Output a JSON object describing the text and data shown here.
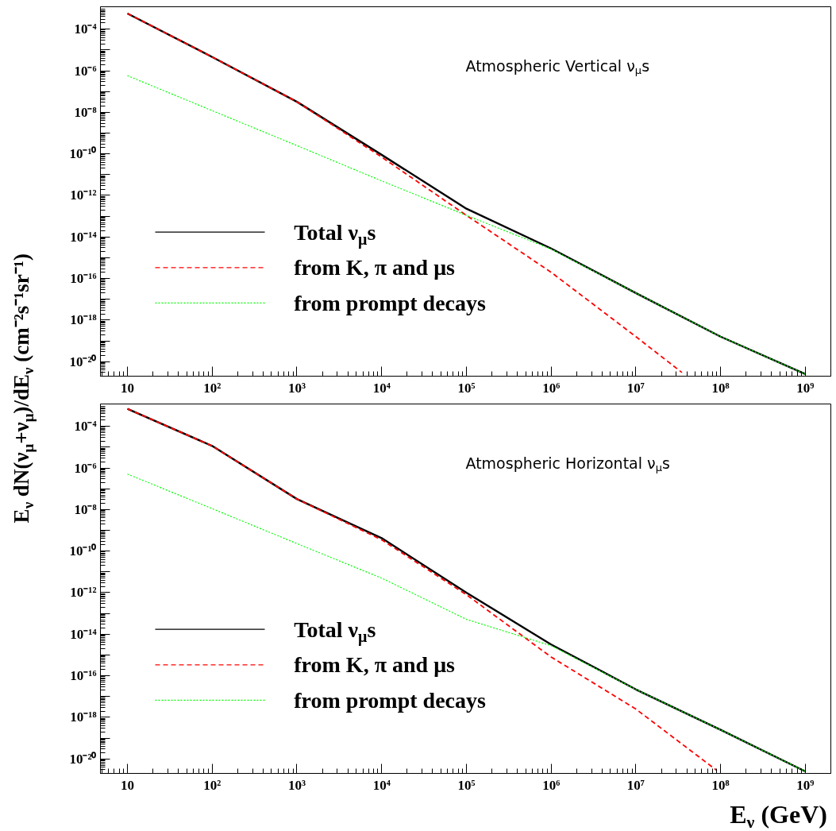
{
  "chart_data": [
    {
      "type": "line",
      "annotations": [
        "Atmospheric Vertical ν$_{μ}$s"
      ],
      "ylabel": "E$_{ν}$ dN(ν$_{μ}$+ν$_{μ}$)/dE$_{ν}$ (cm⁻²s⁻¹sr⁻¹)",
      "log": "xy",
      "grid": false,
      "legend": "bottom left",
      "xlim": [
        4.8,
        2000000000
      ],
      "ylim": [
        2e-21,
        0.0012
      ],
      "xticks": [
        {
          "value": 10,
          "label": "10"
        },
        {
          "value": 100,
          "label": "10²"
        },
        {
          "value": 1000,
          "label": "10³"
        },
        {
          "value": 10000,
          "label": "10⁴"
        },
        {
          "value": 100000,
          "label": "10⁵"
        },
        {
          "value": 1000000,
          "label": "10⁶"
        },
        {
          "value": 10000000,
          "label": "10⁷"
        },
        {
          "value": 100000000,
          "label": "10⁸"
        },
        {
          "value": 1000000000,
          "label": "10⁹"
        }
      ],
      "yticks": [
        {
          "value": 0.0001,
          "label": "10⁻⁴"
        },
        {
          "value": 1e-05,
          "label": null
        },
        {
          "value": 1e-06,
          "label": "10⁻⁶"
        },
        {
          "value": 1e-07,
          "label": null
        },
        {
          "value": 1e-08,
          "label": "10⁻⁸"
        },
        {
          "value": 1e-09,
          "label": null
        },
        {
          "value": 1e-10,
          "label": "10⁻¹⁰"
        },
        {
          "value": 1e-11,
          "label": null
        },
        {
          "value": 1e-12,
          "label": "10⁻¹²"
        },
        {
          "value": 1e-13,
          "label": null
        },
        {
          "value": 1e-14,
          "label": "10⁻¹⁴"
        },
        {
          "value": 1e-15,
          "label": null
        },
        {
          "value": 1e-16,
          "label": "10⁻¹⁶"
        },
        {
          "value": 1e-17,
          "label": null
        },
        {
          "value": 1e-18,
          "label": "10⁻¹⁸"
        },
        {
          "value": 1e-19,
          "label": null
        },
        {
          "value": 1e-20,
          "label": "10⁻²⁰"
        }
      ],
      "series": [
        {
          "name": "Total ν$_{μ}$s",
          "color": "#000000",
          "line_style": "solid",
          "x": [
            10,
            100,
            1000,
            10000,
            100000,
            1000000,
            10000000,
            100000000,
            1000000000
          ],
          "values": [
            0.00057,
            4.6e-06,
            3.2e-08,
            9e-11,
            2.3e-13,
            2.8e-15,
            2e-17,
            1.6e-19,
            2.5e-21
          ]
        },
        {
          "name": "from K, π and μs",
          "color": "#ff0000",
          "line_style": "dashed",
          "x": [
            10,
            100,
            1000,
            10000,
            100000,
            1000000,
            10000000,
            35000000
          ],
          "values": [
            0.00057,
            4.6e-06,
            3.2e-08,
            7e-11,
            1.1e-13,
            2e-16,
            1.6e-19,
            3e-21
          ]
        },
        {
          "name": "from prompt decays",
          "color": "#00ff00",
          "line_style": "dotted",
          "x": [
            10,
            100,
            1000,
            10000,
            100000,
            1000000,
            10000000,
            100000000,
            1000000000
          ],
          "values": [
            5.8e-07,
            1.2e-08,
            2.5e-10,
            5e-12,
            1.1e-13,
            2.6e-15,
            2e-17,
            1.6e-19,
            2.5e-21
          ]
        }
      ]
    },
    {
      "type": "line",
      "annotations": [
        "Atmospheric Horizontal ν$_{μ}$s"
      ],
      "xlabel": "E$_{ν}$ (GeV)",
      "log": "xy",
      "grid": false,
      "legend": "bottom left",
      "xlim": [
        4.8,
        2000000000
      ],
      "ylim": [
        2e-21,
        0.0012
      ],
      "xticks": [
        {
          "value": 10,
          "label": "10"
        },
        {
          "value": 100,
          "label": "10²"
        },
        {
          "value": 1000,
          "label": "10³"
        },
        {
          "value": 10000,
          "label": "10⁴"
        },
        {
          "value": 100000,
          "label": "10⁵"
        },
        {
          "value": 1000000,
          "label": "10⁶"
        },
        {
          "value": 10000000,
          "label": "10⁷"
        },
        {
          "value": 100000000,
          "label": "10⁸"
        },
        {
          "value": 1000000000,
          "label": "10⁹"
        }
      ],
      "yticks": [
        {
          "value": 0.0001,
          "label": "10⁻⁴"
        },
        {
          "value": 1e-05,
          "label": null
        },
        {
          "value": 1e-06,
          "label": "10⁻⁶"
        },
        {
          "value": 1e-07,
          "label": null
        },
        {
          "value": 1e-08,
          "label": "10⁻⁸"
        },
        {
          "value": 1e-09,
          "label": null
        },
        {
          "value": 1e-10,
          "label": "10⁻¹⁰"
        },
        {
          "value": 1e-11,
          "label": null
        },
        {
          "value": 1e-12,
          "label": "10⁻¹²"
        },
        {
          "value": 1e-13,
          "label": null
        },
        {
          "value": 1e-14,
          "label": "10⁻¹⁴"
        },
        {
          "value": 1e-15,
          "label": null
        },
        {
          "value": 1e-16,
          "label": "10⁻¹⁶"
        },
        {
          "value": 1e-17,
          "label": null
        },
        {
          "value": 1e-18,
          "label": "10⁻¹⁸"
        },
        {
          "value": 1e-19,
          "label": null
        },
        {
          "value": 1e-20,
          "label": "10⁻²⁰"
        }
      ],
      "series": [
        {
          "name": "Total ν$_{μ}$s",
          "color": "#000000",
          "line_style": "solid",
          "x": [
            10,
            100,
            1000,
            10000,
            100000,
            1000000,
            10000000,
            100000000,
            1000000000
          ],
          "values": [
            0.0007,
            1.15e-05,
            3.2e-08,
            4.2e-10,
            1e-12,
            3.2e-15,
            2.2e-17,
            2.5e-19,
            2.5e-21
          ]
        },
        {
          "name": "from K, π and μs",
          "color": "#ff0000",
          "line_style": "dashed",
          "x": [
            10,
            100,
            1000,
            10000,
            100000,
            1000000,
            10000000,
            90000000
          ],
          "values": [
            0.0007,
            1.15e-05,
            3.2e-08,
            3.5e-10,
            8e-13,
            8e-16,
            2.5e-18,
            2.8e-21
          ]
        },
        {
          "name": "from prompt decays",
          "color": "#00ff00",
          "line_style": "dotted",
          "x": [
            10,
            100,
            1000,
            10000,
            100000,
            1000000,
            10000000,
            100000000,
            1000000000
          ],
          "values": [
            5.1e-07,
            1.1e-08,
            2.3e-10,
            5e-12,
            5.2e-14,
            2.8e-15,
            2.2e-17,
            2.5e-19,
            2.5e-21
          ]
        }
      ]
    }
  ]
}
